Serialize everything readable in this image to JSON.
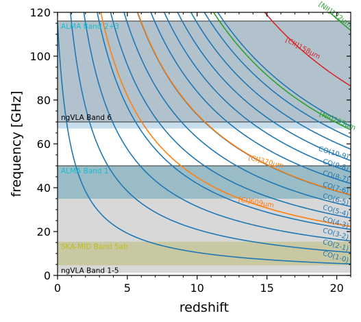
{
  "chart_data": {
    "type": "line",
    "title": "",
    "xlabel": "redshift",
    "ylabel": "frequency [GHz]",
    "xlim": [
      0,
      21
    ],
    "ylim": [
      0,
      120
    ],
    "xticks": [
      "0",
      "5",
      "10",
      "15",
      "20"
    ],
    "yticks": [
      "0",
      "20",
      "40",
      "60",
      "80",
      "100",
      "120"
    ],
    "grid": false,
    "bands": [
      {
        "name": "ALMA Band 2+3",
        "range": [
          67,
          116
        ],
        "color": "#1f77b4",
        "label_color": "#17becf"
      },
      {
        "name": "ngVLA Band 6",
        "range": [
          70,
          116
        ],
        "color": "#7f7f7f",
        "label_color": "#000000"
      },
      {
        "name": "ALMA Band 1",
        "range": [
          35,
          50
        ],
        "color": "#1f77b4",
        "label_color": "#17becf"
      },
      {
        "name": "",
        "range": [
          35,
          50
        ],
        "color": "#17becf",
        "label_color": "#17becf"
      },
      {
        "name": "SKA-MID Band 5ab",
        "range": [
          4.6,
          15.4
        ],
        "color": "#bcbd22",
        "label_color": "#bcbd22"
      },
      {
        "name": "ngVLA Band 1-5",
        "range": [
          1.2,
          50
        ],
        "color": "#7f7f7f",
        "label_color": "#000000"
      }
    ],
    "series": [
      {
        "name": "CO(1-0)",
        "rest_freq_ghz": 115.27,
        "color": "#1f77b4"
      },
      {
        "name": "CO(2-1)",
        "rest_freq_ghz": 230.54,
        "color": "#1f77b4"
      },
      {
        "name": "CO(3-2)",
        "rest_freq_ghz": 345.8,
        "color": "#1f77b4"
      },
      {
        "name": "CO(4-3)",
        "rest_freq_ghz": 461.04,
        "color": "#1f77b4"
      },
      {
        "name": "CO(5-4)",
        "rest_freq_ghz": 576.27,
        "color": "#1f77b4"
      },
      {
        "name": "CO(6-5)",
        "rest_freq_ghz": 691.47,
        "color": "#1f77b4"
      },
      {
        "name": "CO(7-6)",
        "rest_freq_ghz": 806.65,
        "color": "#1f77b4"
      },
      {
        "name": "CO(8-7)",
        "rest_freq_ghz": 921.8,
        "color": "#1f77b4"
      },
      {
        "name": "CO(9-8)",
        "rest_freq_ghz": 1036.91,
        "color": "#1f77b4"
      },
      {
        "name": "CO(10-9)",
        "rest_freq_ghz": 1151.99,
        "color": "#1f77b4"
      },
      {
        "name": "[CI]609μm",
        "rest_freq_ghz": 492.16,
        "color": "#ff7f0e"
      },
      {
        "name": "[CI]370μm",
        "rest_freq_ghz": 809.34,
        "color": "#ff7f0e"
      },
      {
        "name": "[NII]205μm",
        "rest_freq_ghz": 1461.13,
        "color": "#2ca02c"
      },
      {
        "name": "[CII]158μm",
        "rest_freq_ghz": 1900.54,
        "color": "#d62728"
      },
      {
        "name": "[NII]122μm",
        "rest_freq_ghz": 2459.38,
        "color": "#2ca02c"
      }
    ],
    "extra_unlabeled_curves_note": "",
    "unlabeled_curves": [
      {
        "rest_freq_ghz": 1267.0,
        "color": "#1f77b4"
      },
      {
        "rest_freq_ghz": 1381.99,
        "color": "#1f77b4"
      },
      {
        "rest_freq_ghz": 1496.92,
        "color": "#1f77b4"
      }
    ]
  }
}
